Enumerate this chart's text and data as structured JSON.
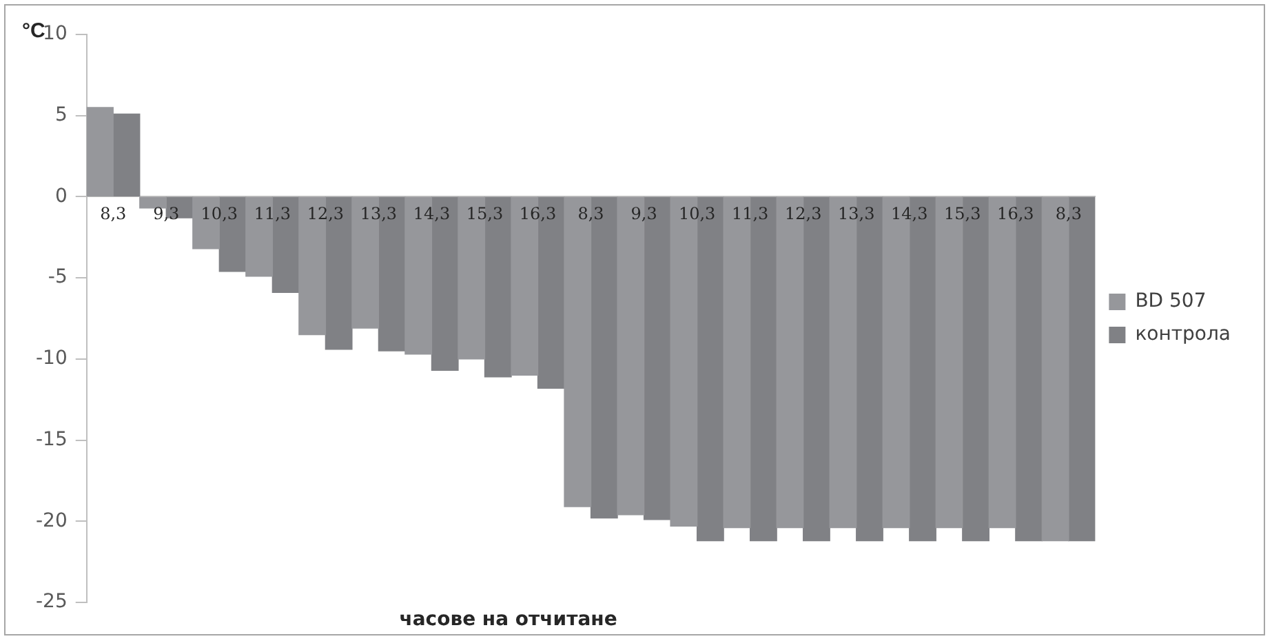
{
  "chart_data": {
    "type": "bar",
    "ylabel": "°C",
    "xlabel": "часове на отчитане",
    "categories": [
      "8,3",
      "9,3",
      "10,3",
      "11,3",
      "12,3",
      "13,3",
      "14,3",
      "15,3",
      "16,3",
      "8,3",
      "9,3",
      "10,3",
      "11,3",
      "12,3",
      "13,3",
      "14,3",
      "15,3",
      "16,3",
      "8,3"
    ],
    "series": [
      {
        "name": "BD 507",
        "color": "#96979b",
        "values": [
          5.5,
          -0.7,
          -3.2,
          -4.9,
          -8.5,
          -8.1,
          -9.7,
          -10.0,
          -11.0,
          -19.1,
          -19.6,
          -20.3,
          -20.4,
          -20.4,
          -20.4,
          -20.4,
          -20.4,
          -20.4,
          -21.2
        ]
      },
      {
        "name": "контрола",
        "color": "#808185",
        "values": [
          5.1,
          -1.3,
          -4.6,
          -5.9,
          -9.4,
          -9.5,
          -10.7,
          -11.1,
          -11.8,
          -19.8,
          -19.9,
          -21.2,
          -21.2,
          -21.2,
          -21.2,
          -21.2,
          -21.2,
          -21.2,
          -21.2
        ]
      }
    ],
    "ylim": [
      -25,
      10
    ],
    "yticks": [
      -25,
      -20,
      -15,
      -10,
      -5,
      0,
      5,
      10
    ],
    "grid": false,
    "legend": "right"
  }
}
